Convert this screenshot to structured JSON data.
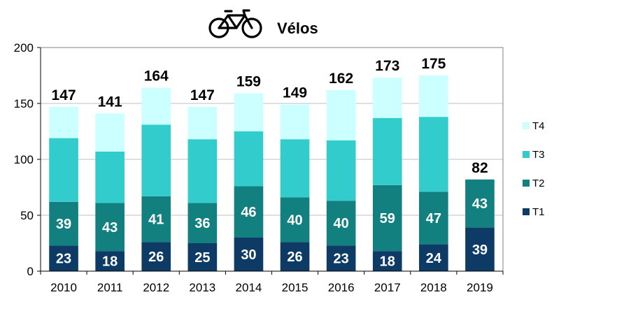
{
  "chart_data": {
    "type": "bar",
    "stacked": true,
    "title": "Vélos",
    "title_icon": "bicycle-icon",
    "categories": [
      "2010",
      "2011",
      "2012",
      "2013",
      "2014",
      "2015",
      "2016",
      "2017",
      "2018",
      "2019"
    ],
    "series": [
      {
        "name": "T1",
        "color": "#0d3b66",
        "values": [
          23,
          18,
          26,
          25,
          30,
          26,
          23,
          18,
          24,
          39
        ],
        "labels_shown": true
      },
      {
        "name": "T2",
        "color": "#138080",
        "values": [
          39,
          43,
          41,
          36,
          46,
          40,
          40,
          59,
          47,
          43
        ],
        "labels_shown": true
      },
      {
        "name": "T3",
        "color": "#33cccc",
        "values": [
          57,
          46,
          64,
          57,
          49,
          52,
          54,
          60,
          67,
          0
        ],
        "labels_shown": false
      },
      {
        "name": "T4",
        "color": "#ccffff",
        "values": [
          28,
          34,
          33,
          29,
          34,
          31,
          45,
          36,
          37,
          0
        ],
        "labels_shown": false
      }
    ],
    "totals": [
      147,
      141,
      164,
      147,
      159,
      149,
      162,
      173,
      175,
      82
    ],
    "ylim": [
      0,
      200
    ],
    "yticks": [
      0,
      50,
      100,
      150,
      200
    ],
    "grid": true,
    "legend_position": "right",
    "xlabel": "",
    "ylabel": ""
  }
}
